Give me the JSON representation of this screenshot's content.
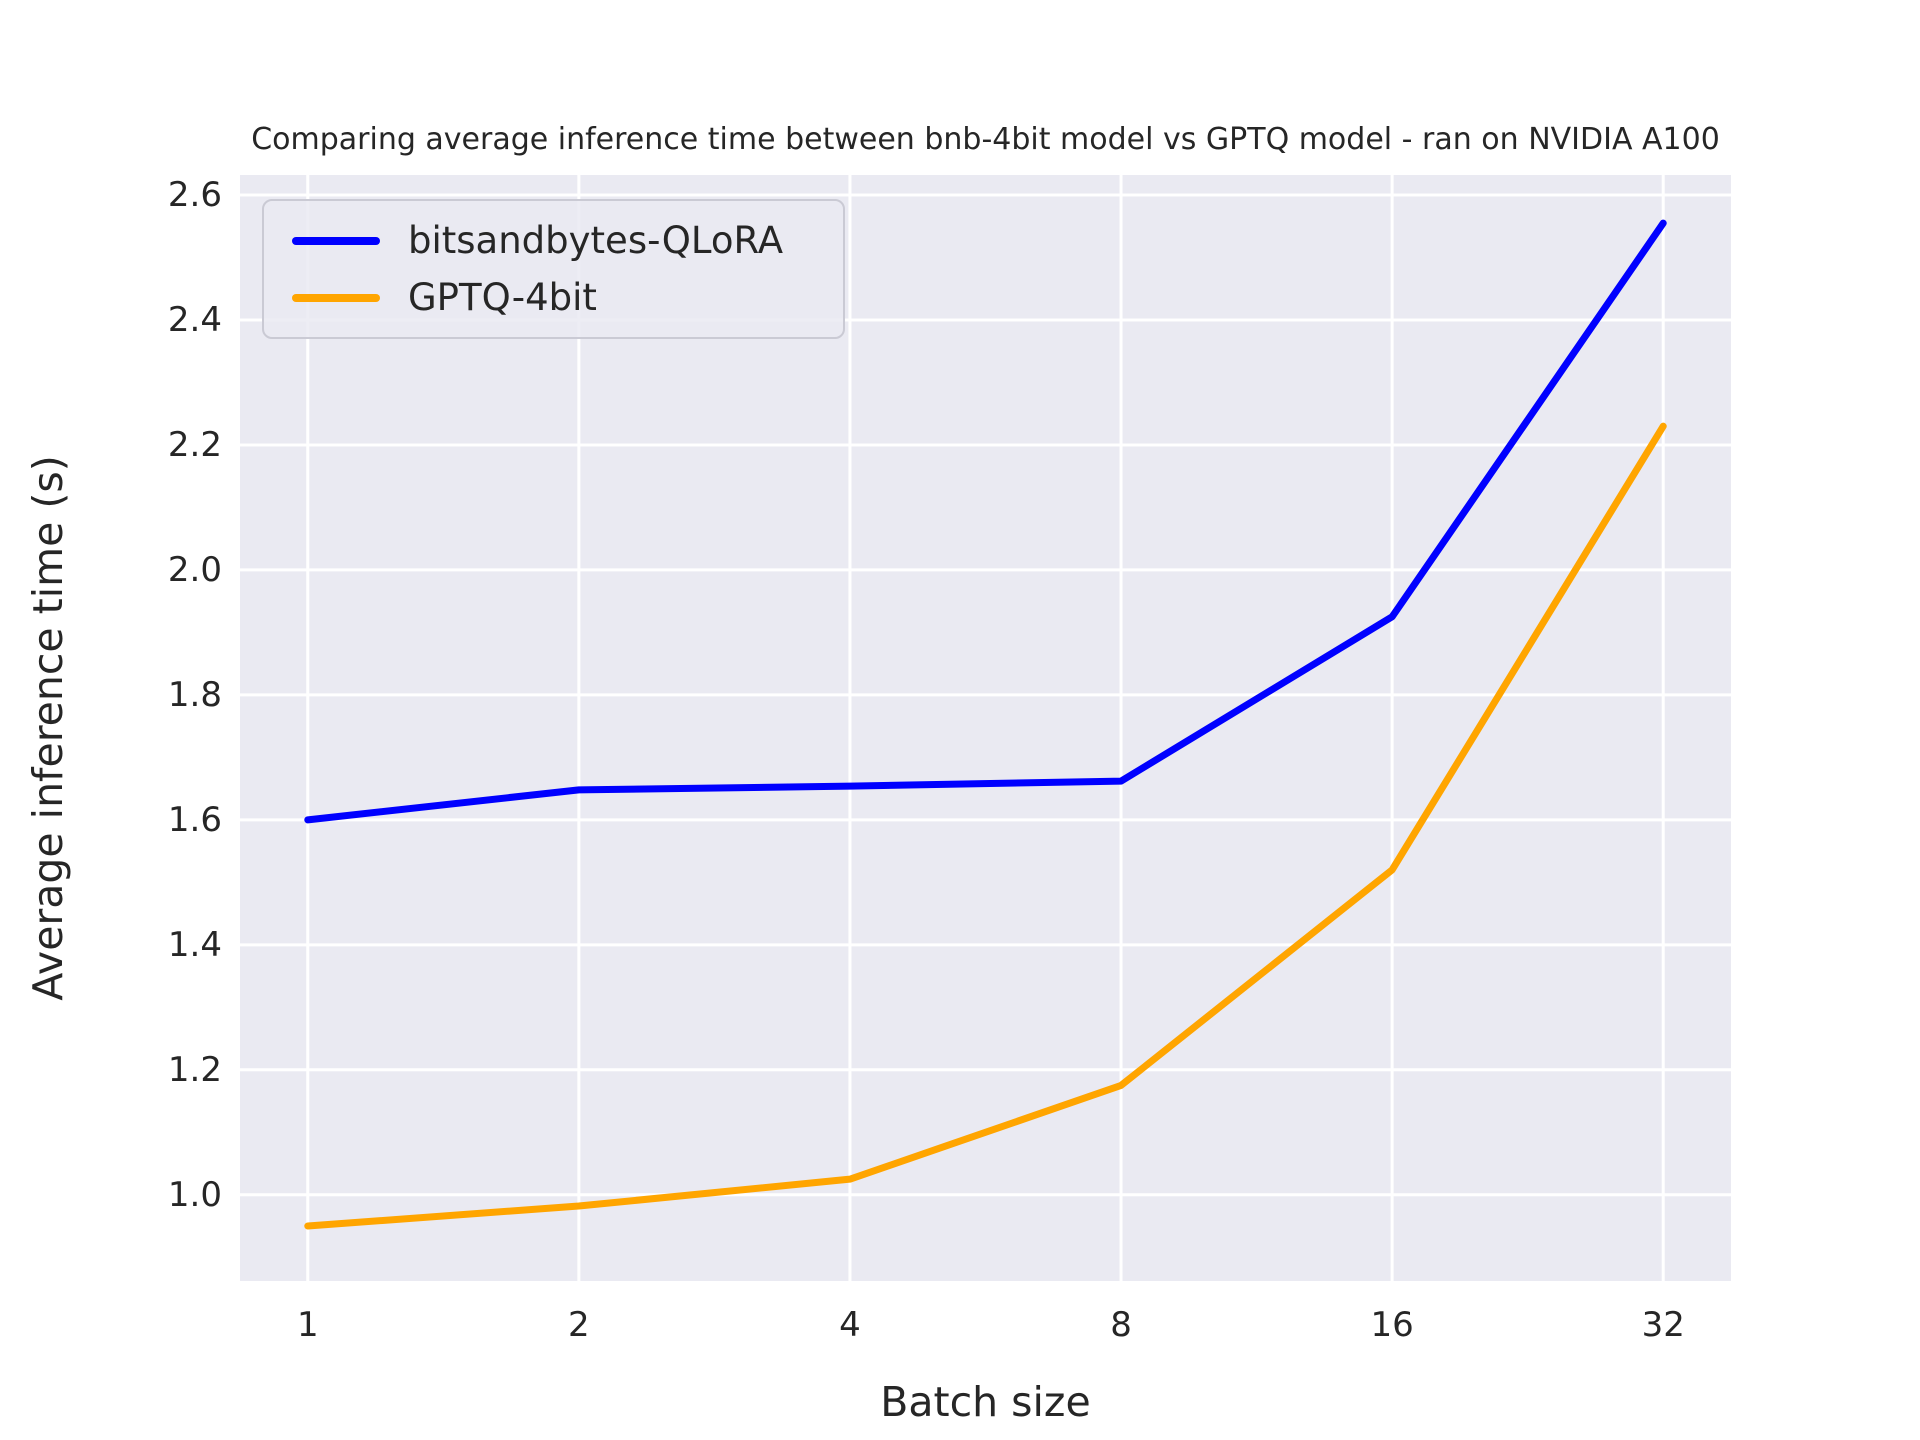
{
  "chart_data": {
    "type": "line",
    "title": "Comparing average inference time between bnb-4bit model vs GPTQ model - ran on NVIDIA A100",
    "xlabel": "Batch size",
    "ylabel": "Average inference time (s)",
    "x_scale": "log2",
    "categories": [
      1,
      2,
      4,
      8,
      16,
      32
    ],
    "x_tick_labels": [
      "1",
      "2",
      "4",
      "8",
      "16",
      "32"
    ],
    "y_ticks": [
      1.0,
      1.2,
      1.4,
      1.6,
      1.8,
      2.0,
      2.2,
      2.4,
      2.6
    ],
    "y_tick_labels": [
      "1.0",
      "1.2",
      "1.4",
      "1.6",
      "1.8",
      "2.0",
      "2.2",
      "2.4",
      "2.6"
    ],
    "xlim_log2": [
      -0.25,
      5.25
    ],
    "ylim": [
      0.862,
      2.632
    ],
    "grid": true,
    "legend_position": "upper left",
    "series": [
      {
        "name": "bitsandbytes-QLoRA",
        "color": "#0000ff",
        "values": [
          1.6,
          1.648,
          1.654,
          1.662,
          1.925,
          2.555
        ]
      },
      {
        "name": "GPTQ-4bit",
        "color": "#ffa500",
        "values": [
          0.95,
          0.982,
          1.025,
          1.175,
          1.52,
          2.23
        ]
      }
    ],
    "colors": {
      "figure_bg": "#ffffff",
      "plot_bg": "#eaeaf2",
      "grid": "#ffffff",
      "text": "#262626"
    }
  }
}
